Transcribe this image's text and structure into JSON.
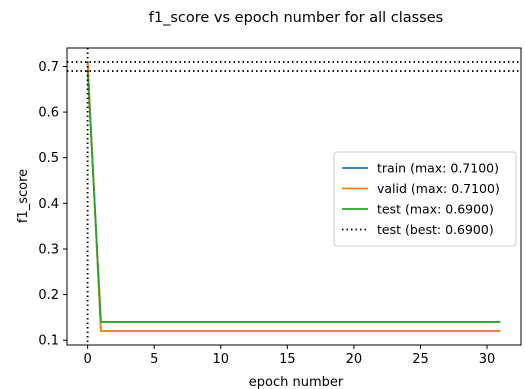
{
  "chart_data": {
    "type": "line",
    "title": "f1_score vs epoch number for all classes",
    "xlabel": "epoch number",
    "ylabel": "f1_score",
    "xlim": [
      -1.55,
      32.55
    ],
    "ylim": [
      0.0895,
      0.7405
    ],
    "xticks": [
      0,
      5,
      10,
      15,
      20,
      25,
      30
    ],
    "yticks": [
      0.1,
      0.2,
      0.3,
      0.4,
      0.5,
      0.6,
      0.7
    ],
    "grid": false,
    "legend_position": "center right",
    "series": [
      {
        "name": "train (max: 0.7100)",
        "color": "#1f77b4",
        "style": "solid",
        "x": [
          0,
          1,
          2,
          3,
          4,
          5,
          6,
          7,
          8,
          9,
          10,
          11,
          12,
          13,
          14,
          15,
          16,
          17,
          18,
          19,
          20,
          21,
          22,
          23,
          24,
          25,
          26,
          27,
          28,
          29,
          30,
          31
        ],
        "y": [
          0.71,
          0.12,
          0.12,
          0.12,
          0.12,
          0.12,
          0.12,
          0.12,
          0.12,
          0.12,
          0.12,
          0.12,
          0.12,
          0.12,
          0.12,
          0.12,
          0.12,
          0.12,
          0.12,
          0.12,
          0.12,
          0.12,
          0.12,
          0.12,
          0.12,
          0.12,
          0.12,
          0.12,
          0.12,
          0.12,
          0.12,
          0.12
        ]
      },
      {
        "name": "valid (max: 0.7100)",
        "color": "#ff7f0e",
        "style": "solid",
        "x": [
          0,
          1,
          2,
          3,
          4,
          5,
          6,
          7,
          8,
          9,
          10,
          11,
          12,
          13,
          14,
          15,
          16,
          17,
          18,
          19,
          20,
          21,
          22,
          23,
          24,
          25,
          26,
          27,
          28,
          29,
          30,
          31
        ],
        "y": [
          0.71,
          0.12,
          0.12,
          0.12,
          0.12,
          0.12,
          0.12,
          0.12,
          0.12,
          0.12,
          0.12,
          0.12,
          0.12,
          0.12,
          0.12,
          0.12,
          0.12,
          0.12,
          0.12,
          0.12,
          0.12,
          0.12,
          0.12,
          0.12,
          0.12,
          0.12,
          0.12,
          0.12,
          0.12,
          0.12,
          0.12,
          0.12
        ]
      },
      {
        "name": "test (max: 0.6900)",
        "color": "#2ca02c",
        "style": "solid",
        "x": [
          0,
          1,
          2,
          3,
          4,
          5,
          6,
          7,
          8,
          9,
          10,
          11,
          12,
          13,
          14,
          15,
          16,
          17,
          18,
          19,
          20,
          21,
          22,
          23,
          24,
          25,
          26,
          27,
          28,
          29,
          30,
          31
        ],
        "y": [
          0.69,
          0.14,
          0.14,
          0.14,
          0.14,
          0.14,
          0.14,
          0.14,
          0.14,
          0.14,
          0.14,
          0.14,
          0.14,
          0.14,
          0.14,
          0.14,
          0.14,
          0.14,
          0.14,
          0.14,
          0.14,
          0.14,
          0.14,
          0.14,
          0.14,
          0.14,
          0.14,
          0.14,
          0.14,
          0.14,
          0.14,
          0.14
        ]
      }
    ],
    "reference_lines": {
      "name": "test (best: 0.6900)",
      "color": "#000000",
      "style": "dotted",
      "vertical_x": 0,
      "horizontal_y": [
        0.69,
        0.71
      ]
    }
  }
}
